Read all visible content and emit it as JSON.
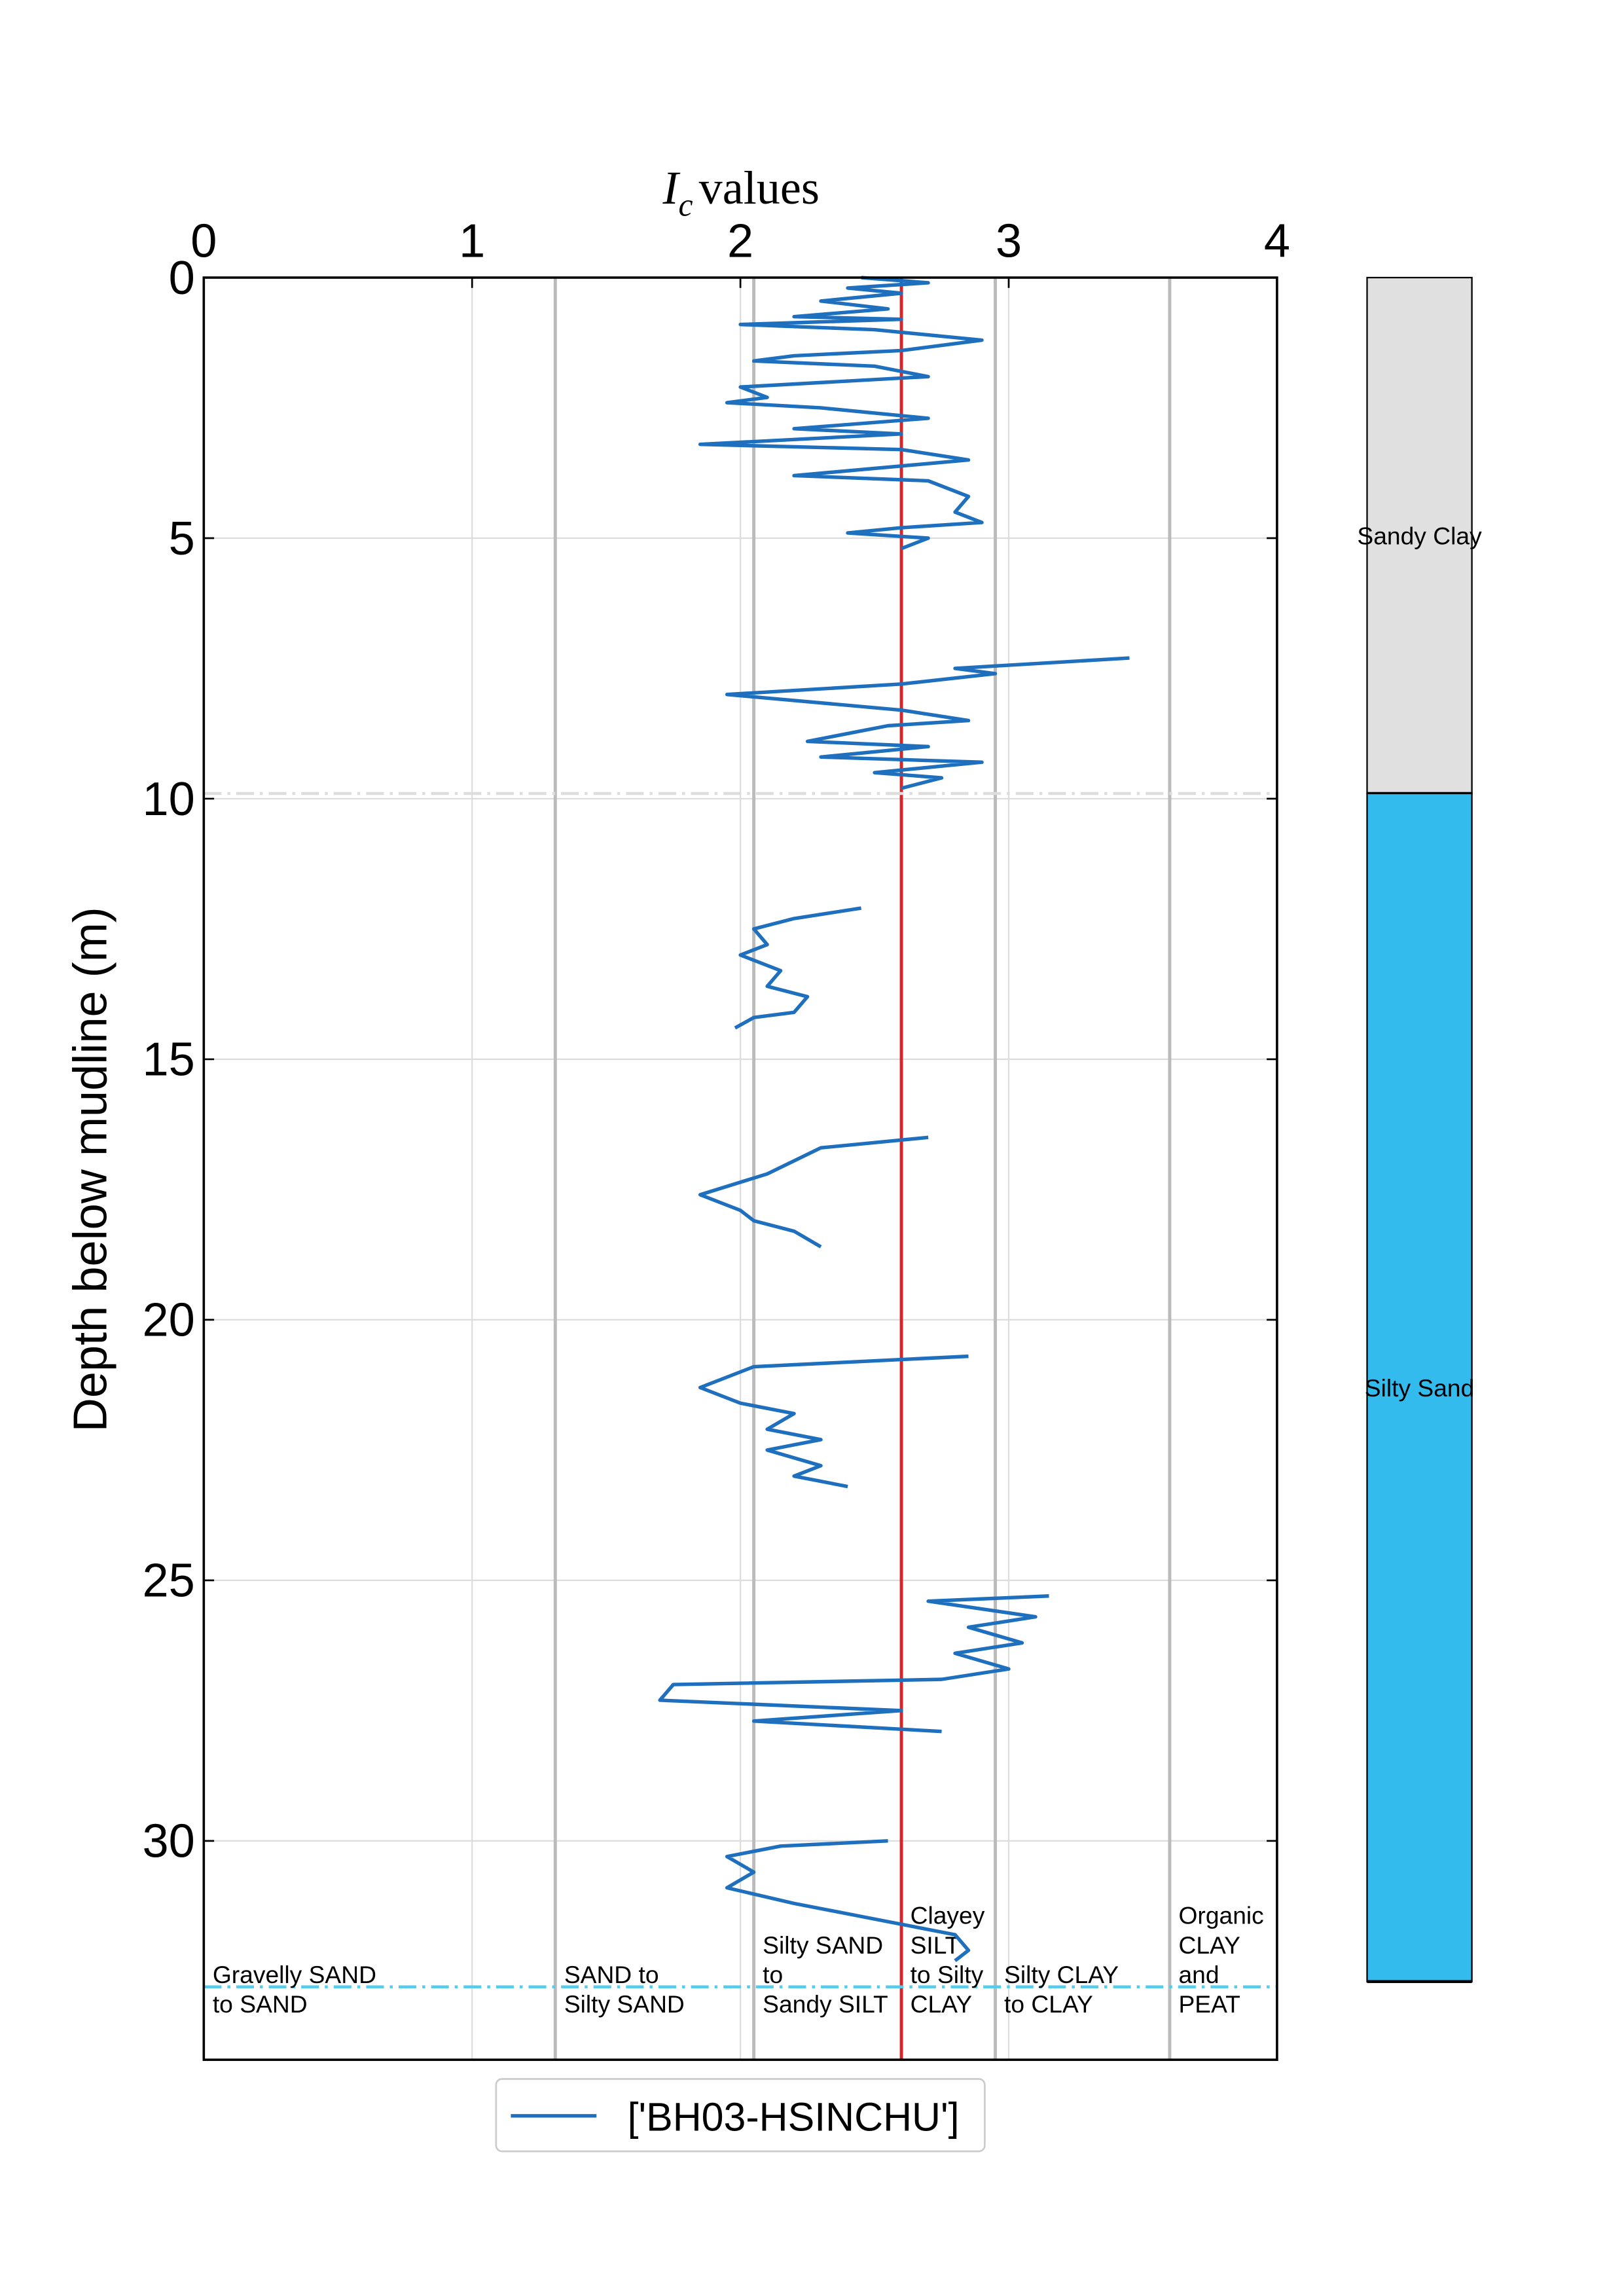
{
  "chart_data": {
    "type": "line",
    "xlabel": {
      "symbol": "I",
      "subscript": "c",
      "text": "values"
    },
    "ylabel": "Depth below mudline (m)",
    "xlim": [
      0,
      4
    ],
    "xticks": [
      0,
      1,
      2,
      3,
      4
    ],
    "ylim": [
      34.2,
      0
    ],
    "yticks": [
      0,
      5,
      10,
      15,
      20,
      25,
      30
    ],
    "grid": true,
    "vlines": [
      {
        "value": 1.31,
        "color": "#bbbbbb"
      },
      {
        "value": 2.05,
        "color": "#bbbbbb"
      },
      {
        "value": 2.6,
        "color": "#d62728"
      },
      {
        "value": 2.95,
        "color": "#bbbbbb"
      },
      {
        "value": 3.6,
        "color": "#bbbbbb"
      }
    ],
    "hlines": [
      {
        "value": 9.9,
        "color": "#dddddd"
      },
      {
        "value": 32.8,
        "color": "#55ccee"
      }
    ],
    "zones": [
      [
        "Gravelly SAND",
        "to SAND"
      ],
      [
        "SAND to",
        "Silty SAND"
      ],
      [
        "Silty SAND",
        "to",
        "Sandy SILT"
      ],
      [
        "Clayey",
        "SILT",
        "to Silty",
        "CLAY"
      ],
      [
        "Silty CLAY",
        "to CLAY"
      ],
      [
        "Organic",
        "CLAY",
        "and",
        "PEAT"
      ]
    ],
    "layers": [
      {
        "name": "Sandy Clay",
        "top": 0,
        "bottom": 9.9,
        "color": "#e0e0e0"
      },
      {
        "name": "Silty Sand",
        "top": 9.9,
        "bottom": 32.7,
        "color": "#33bbee"
      }
    ],
    "series": [
      {
        "name": "['BH03-HSINCHU']",
        "color": "#1f6fbf",
        "x": [
          2.45,
          2.7,
          2.4,
          2.6,
          2.3,
          2.55,
          2.2,
          2.6,
          2.0,
          2.5,
          2.9,
          2.6,
          2.2,
          2.05,
          2.5,
          2.7,
          2.0,
          2.1,
          1.95,
          2.3,
          2.7,
          2.2,
          2.6,
          1.85,
          2.6,
          2.85,
          2.2,
          2.7,
          2.85,
          2.8,
          2.9,
          2.6,
          2.4,
          2.7,
          2.6,
          null,
          3.45,
          2.8,
          2.95,
          2.6,
          1.95,
          2.6,
          2.85,
          2.55,
          2.25,
          2.7,
          2.3,
          2.9,
          2.5,
          2.75,
          2.6,
          null,
          2.45,
          2.2,
          2.05,
          2.1,
          2.0,
          2.15,
          2.1,
          2.25,
          2.2,
          2.05,
          1.98,
          null,
          2.7,
          2.3,
          2.1,
          1.85,
          2.0,
          2.05,
          2.2,
          2.3,
          null,
          2.85,
          2.05,
          1.85,
          2.0,
          2.2,
          2.1,
          2.3,
          2.1,
          2.3,
          2.2,
          2.4,
          null,
          3.15,
          2.7,
          3.1,
          2.85,
          3.05,
          2.8,
          3.0,
          2.75,
          1.75,
          1.7,
          2.6,
          2.05,
          2.75,
          null,
          2.55,
          2.15,
          1.95,
          2.05,
          1.95,
          2.2,
          2.5,
          2.8,
          2.85,
          2.8
        ],
        "y": [
          0,
          0.1,
          0.2,
          0.3,
          0.45,
          0.6,
          0.75,
          0.8,
          0.9,
          1.0,
          1.2,
          1.4,
          1.5,
          1.6,
          1.7,
          1.9,
          2.1,
          2.3,
          2.4,
          2.5,
          2.7,
          2.9,
          3.0,
          3.2,
          3.3,
          3.5,
          3.8,
          3.9,
          4.2,
          4.5,
          4.7,
          4.8,
          4.9,
          5.0,
          5.2,
          null,
          7.3,
          7.5,
          7.6,
          7.8,
          8.0,
          8.3,
          8.5,
          8.6,
          8.9,
          9.0,
          9.2,
          9.3,
          9.5,
          9.6,
          9.8,
          null,
          12.1,
          12.3,
          12.5,
          12.8,
          13.0,
          13.3,
          13.6,
          13.8,
          14.1,
          14.2,
          14.4,
          null,
          16.5,
          16.7,
          17.2,
          17.6,
          17.9,
          18.1,
          18.3,
          18.6,
          null,
          20.7,
          20.9,
          21.3,
          21.6,
          21.8,
          22.1,
          22.3,
          22.5,
          22.8,
          23.0,
          23.2,
          null,
          25.3,
          25.4,
          25.7,
          25.9,
          26.2,
          26.4,
          26.7,
          26.9,
          27.0,
          27.3,
          27.5,
          27.7,
          27.9,
          null,
          30.0,
          30.1,
          30.3,
          30.6,
          30.9,
          31.2,
          31.5,
          31.8,
          32.1,
          32.3
        ]
      }
    ]
  }
}
